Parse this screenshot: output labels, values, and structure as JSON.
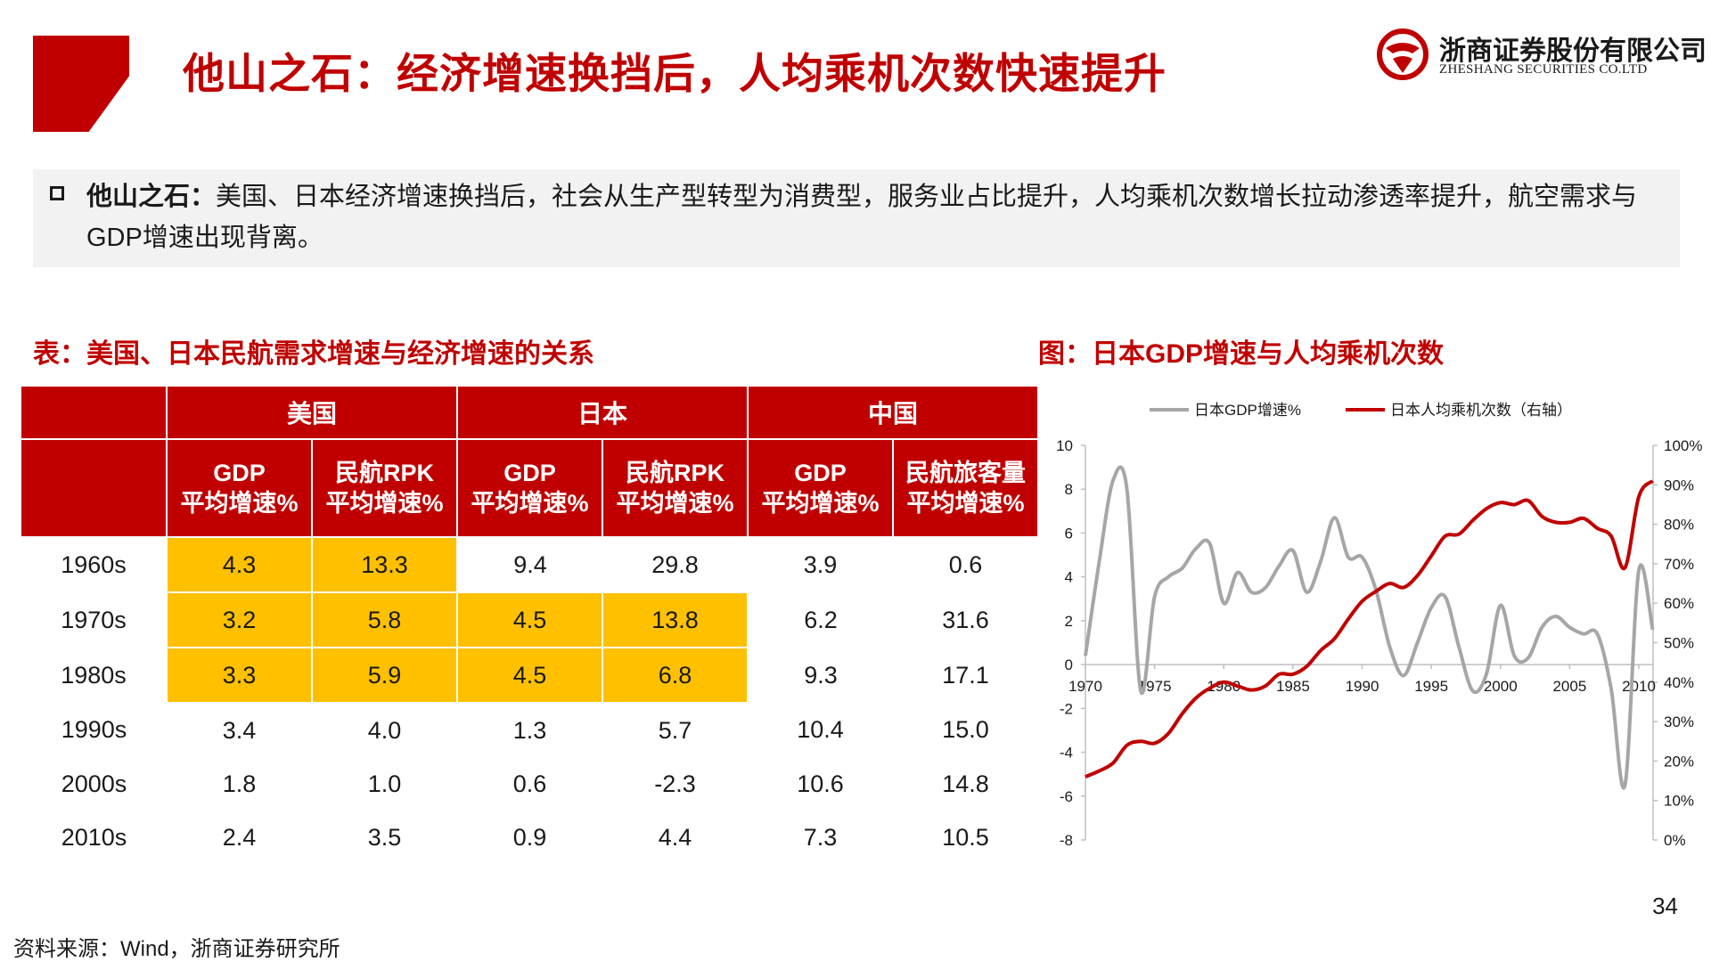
{
  "header": {
    "title": "他山之石：经济增速换挡后，人均乘机次数快速提升",
    "logo_cn": "浙商证券股份有限公司",
    "logo_en": "ZHESHANG SECURITIES CO.LTD"
  },
  "summary": {
    "lead": "他山之石：",
    "body": "美国、日本经济增速换挡后，社会从生产型转型为消费型，服务业占比提升，人均乘机次数增长拉动渗透率提升，航空需求与GDP增速出现背离。"
  },
  "table_title": "表：美国、日本民航需求增速与经济增速的关系",
  "chart_title": "图：日本GDP增速与人均乘机次数",
  "table": {
    "groups": [
      "美国",
      "日本",
      "中国"
    ],
    "subheaders": [
      [
        "GDP",
        "平均增速%"
      ],
      [
        "民航RPK",
        "平均增速%"
      ],
      [
        "GDP",
        "平均增速%"
      ],
      [
        "民航RPK",
        "平均增速%"
      ],
      [
        "GDP",
        "平均增速%"
      ],
      [
        "民航旅客量",
        "平均增速%"
      ]
    ],
    "rows": [
      {
        "label": "1960s",
        "values": [
          "4.3",
          "13.3",
          "9.4",
          "29.8",
          "3.9",
          "0.6"
        ]
      },
      {
        "label": "1970s",
        "values": [
          "3.2",
          "5.8",
          "4.5",
          "13.8",
          "6.2",
          "31.6"
        ]
      },
      {
        "label": "1980s",
        "values": [
          "3.3",
          "5.9",
          "4.5",
          "6.8",
          "9.3",
          "17.1"
        ]
      },
      {
        "label": "1990s",
        "values": [
          "3.4",
          "4.0",
          "1.3",
          "5.7",
          "10.4",
          "15.0"
        ]
      },
      {
        "label": "2000s",
        "values": [
          "1.8",
          "1.0",
          "0.6",
          "-2.3",
          "10.6",
          "14.8"
        ]
      },
      {
        "label": "2010s",
        "values": [
          "2.4",
          "3.5",
          "0.9",
          "4.4",
          "7.3",
          "10.5"
        ]
      }
    ],
    "highlight_color": "#ffc000",
    "header_color": "#c00000"
  },
  "chart_data": {
    "type": "line",
    "title": "",
    "legend_position": "top",
    "grid": false,
    "x_ticks": [
      "1970",
      "1975",
      "1980",
      "1985",
      "1990",
      "1995",
      "2000",
      "2005",
      "2010"
    ],
    "xlim": [
      1970,
      2010
    ],
    "y_left": {
      "ylim": [
        -8,
        10
      ],
      "ticks": [
        "10",
        "8",
        "6",
        "4",
        "2",
        "0",
        "-2",
        "-4",
        "-6",
        "-8"
      ]
    },
    "y_right": {
      "ylim": [
        0,
        100
      ],
      "ticks": [
        "100%",
        "90%",
        "80%",
        "70%",
        "60%",
        "50%",
        "40%",
        "30%",
        "20%",
        "10%",
        "0%"
      ]
    },
    "series": [
      {
        "name": "日本GDP增速%",
        "axis": "left",
        "color": "#a6a6a6",
        "x": [
          1970,
          1971,
          1972,
          1973,
          1974,
          1975,
          1976,
          1977,
          1978,
          1979,
          1980,
          1981,
          1982,
          1983,
          1984,
          1985,
          1986,
          1987,
          1988,
          1989,
          1990,
          1991,
          1992,
          1993,
          1994,
          1995,
          1996,
          1997,
          1998,
          1999,
          2000,
          2001,
          2002,
          2003,
          2004,
          2005,
          2006,
          2007,
          2008,
          2009,
          2010,
          2011
        ],
        "values": [
          0.4,
          4.7,
          8.4,
          8.0,
          -1.2,
          3.1,
          4.0,
          4.4,
          5.3,
          5.5,
          2.8,
          4.2,
          3.3,
          3.5,
          4.5,
          5.2,
          3.3,
          4.7,
          6.7,
          4.9,
          4.9,
          3.4,
          0.8,
          -0.5,
          1.0,
          2.6,
          3.1,
          0.8,
          -1.2,
          -0.4,
          2.7,
          0.4,
          0.3,
          1.7,
          2.2,
          1.7,
          1.4,
          1.4,
          -1.1,
          -5.5,
          4.3,
          1.6
        ]
      },
      {
        "name": "日本人均乘机次数（右轴）",
        "axis": "right",
        "color": "#c00000",
        "x": [
          1970,
          1971,
          1972,
          1973,
          1974,
          1975,
          1976,
          1977,
          1978,
          1979,
          1980,
          1981,
          1982,
          1983,
          1984,
          1985,
          1986,
          1987,
          1988,
          1989,
          1990,
          1991,
          1992,
          1993,
          1994,
          1995,
          1996,
          1997,
          1998,
          1999,
          2000,
          2001,
          2002,
          2003,
          2004,
          2005,
          2006,
          2007,
          2008,
          2009,
          2010,
          2011
        ],
        "values": [
          16,
          17.5,
          19.5,
          24,
          25,
          24.5,
          27,
          32,
          36,
          38.5,
          40,
          39,
          38,
          39,
          42,
          42,
          44,
          48,
          51,
          56,
          60.5,
          63,
          65,
          64,
          67,
          72,
          77,
          77.5,
          81,
          84,
          85.5,
          85,
          86,
          82,
          80.5,
          80.5,
          81.5,
          79,
          77,
          69,
          87,
          91
        ]
      }
    ]
  },
  "page_number": "34",
  "source": "资料来源：Wind，浙商证券研究所"
}
